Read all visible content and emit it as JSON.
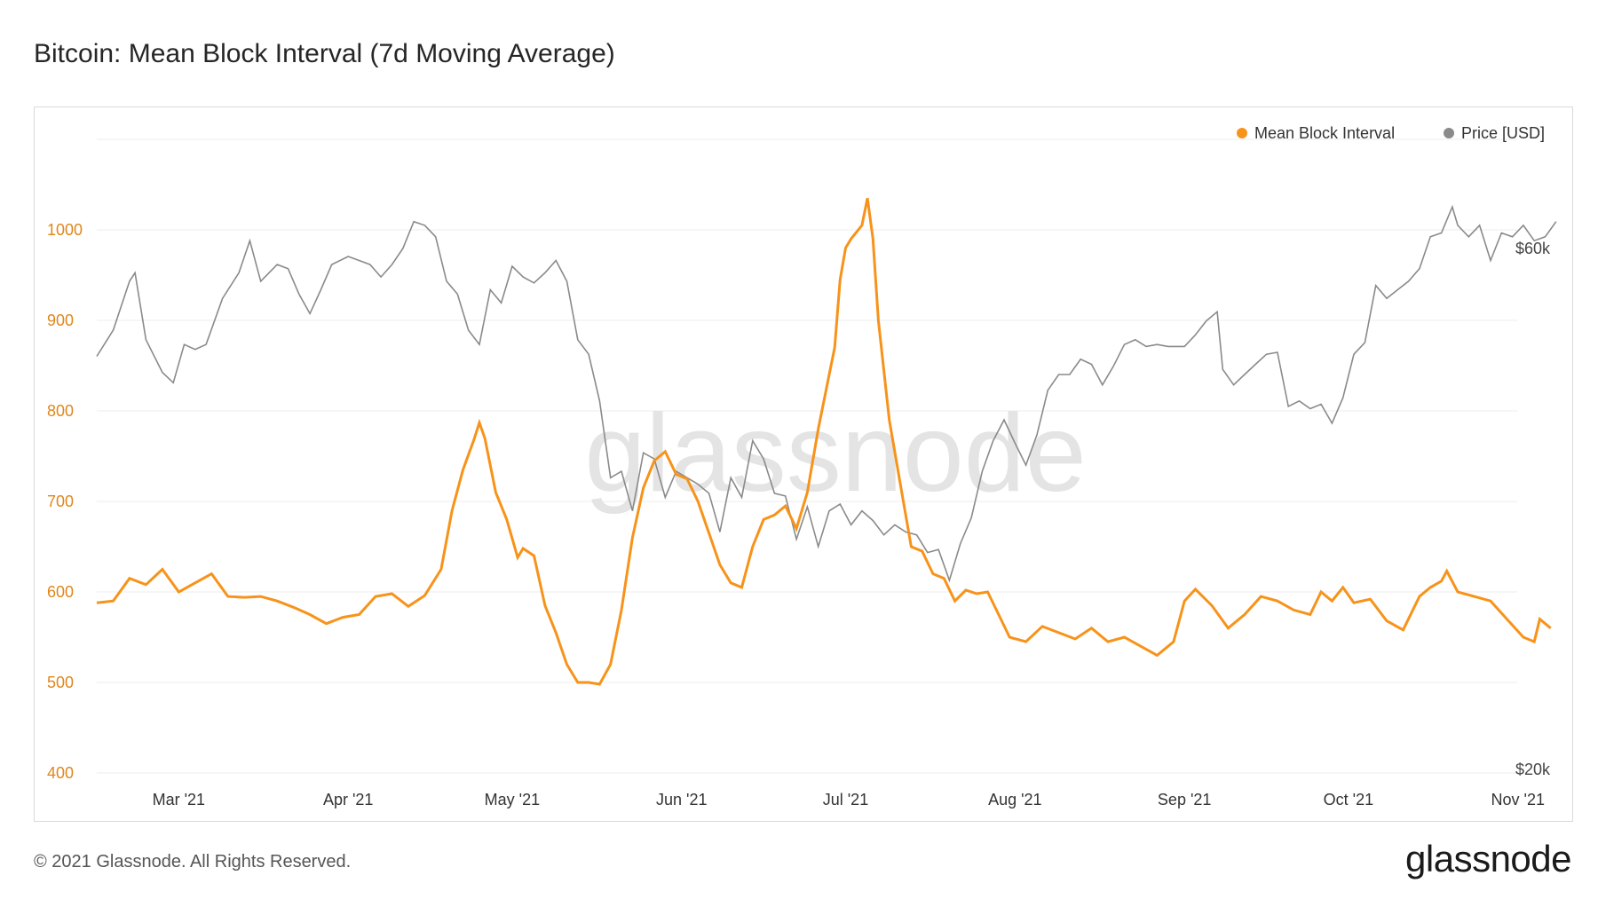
{
  "title": "Bitcoin: Mean Block Interval (7d Moving Average)",
  "footer": {
    "copyright": "© 2021 Glassnode. All Rights Reserved.",
    "logo": "glassnode"
  },
  "watermark": "glassnode",
  "colors": {
    "interval": "#F7931A",
    "price": "#8a8a8a",
    "left_axis_text": "#E0861B",
    "grid": "#ececec"
  },
  "chart_data": {
    "type": "line",
    "title": "Bitcoin: Mean Block Interval (7d Moving Average)",
    "x_ticks": [
      "Mar '21",
      "Apr '21",
      "May '21",
      "Jun '21",
      "Jul '21",
      "Aug '21",
      "Sep '21",
      "Oct '21",
      "Nov '21"
    ],
    "y_left": {
      "ticks": [
        "400",
        "500",
        "600",
        "700",
        "800",
        "900",
        "1000"
      ],
      "lim": [
        400,
        1100
      ]
    },
    "y_right": {
      "ticks": [
        "$20k",
        "$60k"
      ],
      "scale": "log",
      "lim": [
        20000,
        110000
      ]
    },
    "legend_position": "top-right",
    "grid": true,
    "series": [
      {
        "name": "Mean Block Interval",
        "axis": "left",
        "points": [
          [
            "2021-02-14",
            588
          ],
          [
            "2021-02-17",
            590
          ],
          [
            "2021-02-20",
            615
          ],
          [
            "2021-02-23",
            608
          ],
          [
            "2021-02-26",
            625
          ],
          [
            "2021-03-01",
            600
          ],
          [
            "2021-03-04",
            610
          ],
          [
            "2021-03-07",
            620
          ],
          [
            "2021-03-10",
            595
          ],
          [
            "2021-03-13",
            594
          ],
          [
            "2021-03-16",
            595
          ],
          [
            "2021-03-19",
            590
          ],
          [
            "2021-03-22",
            583
          ],
          [
            "2021-03-25",
            575
          ],
          [
            "2021-03-28",
            565
          ],
          [
            "2021-03-31",
            572
          ],
          [
            "2021-04-03",
            575
          ],
          [
            "2021-04-06",
            595
          ],
          [
            "2021-04-09",
            598
          ],
          [
            "2021-04-12",
            584
          ],
          [
            "2021-04-15",
            596
          ],
          [
            "2021-04-18",
            625
          ],
          [
            "2021-04-20",
            690
          ],
          [
            "2021-04-22",
            735
          ],
          [
            "2021-04-24",
            768
          ],
          [
            "2021-04-25",
            787
          ],
          [
            "2021-04-26",
            770
          ],
          [
            "2021-04-28",
            710
          ],
          [
            "2021-04-30",
            680
          ],
          [
            "2021-05-02",
            638
          ],
          [
            "2021-05-03",
            648
          ],
          [
            "2021-05-05",
            640
          ],
          [
            "2021-05-07",
            585
          ],
          [
            "2021-05-09",
            555
          ],
          [
            "2021-05-11",
            520
          ],
          [
            "2021-05-13",
            500
          ],
          [
            "2021-05-15",
            500
          ],
          [
            "2021-05-17",
            498
          ],
          [
            "2021-05-19",
            520
          ],
          [
            "2021-05-21",
            580
          ],
          [
            "2021-05-23",
            660
          ],
          [
            "2021-05-25",
            715
          ],
          [
            "2021-05-27",
            745
          ],
          [
            "2021-05-29",
            755
          ],
          [
            "2021-05-31",
            730
          ],
          [
            "2021-06-02",
            725
          ],
          [
            "2021-06-04",
            700
          ],
          [
            "2021-06-06",
            665
          ],
          [
            "2021-06-08",
            630
          ],
          [
            "2021-06-10",
            610
          ],
          [
            "2021-06-12",
            605
          ],
          [
            "2021-06-14",
            650
          ],
          [
            "2021-06-16",
            680
          ],
          [
            "2021-06-18",
            685
          ],
          [
            "2021-06-20",
            695
          ],
          [
            "2021-06-22",
            670
          ],
          [
            "2021-06-24",
            710
          ],
          [
            "2021-06-26",
            780
          ],
          [
            "2021-06-28",
            840
          ],
          [
            "2021-06-29",
            870
          ],
          [
            "2021-06-30",
            945
          ],
          [
            "2021-07-01",
            980
          ],
          [
            "2021-07-02",
            990
          ],
          [
            "2021-07-04",
            1005
          ],
          [
            "2021-07-05",
            1035
          ],
          [
            "2021-07-06",
            990
          ],
          [
            "2021-07-07",
            900
          ],
          [
            "2021-07-09",
            790
          ],
          [
            "2021-07-11",
            720
          ],
          [
            "2021-07-13",
            650
          ],
          [
            "2021-07-15",
            645
          ],
          [
            "2021-07-17",
            620
          ],
          [
            "2021-07-19",
            615
          ],
          [
            "2021-07-21",
            590
          ],
          [
            "2021-07-23",
            602
          ],
          [
            "2021-07-25",
            598
          ],
          [
            "2021-07-27",
            600
          ],
          [
            "2021-07-29",
            575
          ],
          [
            "2021-07-31",
            550
          ],
          [
            "2021-08-03",
            545
          ],
          [
            "2021-08-06",
            562
          ],
          [
            "2021-08-09",
            555
          ],
          [
            "2021-08-12",
            548
          ],
          [
            "2021-08-15",
            560
          ],
          [
            "2021-08-18",
            545
          ],
          [
            "2021-08-21",
            550
          ],
          [
            "2021-08-24",
            540
          ],
          [
            "2021-08-27",
            530
          ],
          [
            "2021-08-30",
            545
          ],
          [
            "2021-09-01",
            590
          ],
          [
            "2021-09-03",
            603
          ],
          [
            "2021-09-06",
            585
          ],
          [
            "2021-09-09",
            560
          ],
          [
            "2021-09-12",
            575
          ],
          [
            "2021-09-15",
            595
          ],
          [
            "2021-09-18",
            590
          ],
          [
            "2021-09-21",
            580
          ],
          [
            "2021-09-24",
            575
          ],
          [
            "2021-09-26",
            600
          ],
          [
            "2021-09-28",
            590
          ],
          [
            "2021-09-30",
            605
          ],
          [
            "2021-10-02",
            588
          ],
          [
            "2021-10-05",
            592
          ],
          [
            "2021-10-08",
            568
          ],
          [
            "2021-10-11",
            558
          ],
          [
            "2021-10-14",
            595
          ],
          [
            "2021-10-16",
            605
          ],
          [
            "2021-10-18",
            612
          ],
          [
            "2021-10-19",
            623
          ],
          [
            "2021-10-21",
            600
          ],
          [
            "2021-10-24",
            595
          ],
          [
            "2021-10-27",
            590
          ],
          [
            "2021-10-30",
            570
          ],
          [
            "2021-11-02",
            550
          ],
          [
            "2021-11-04",
            545
          ],
          [
            "2021-11-05",
            570
          ],
          [
            "2021-11-07",
            560
          ]
        ]
      },
      {
        "name": "Price [USD]",
        "axis": "right",
        "points": [
          [
            "2021-02-14",
            47800
          ],
          [
            "2021-02-17",
            50500
          ],
          [
            "2021-02-20",
            56000
          ],
          [
            "2021-02-21",
            57000
          ],
          [
            "2021-02-23",
            49500
          ],
          [
            "2021-02-26",
            46200
          ],
          [
            "2021-02-28",
            45200
          ],
          [
            "2021-03-02",
            49000
          ],
          [
            "2021-03-04",
            48500
          ],
          [
            "2021-03-06",
            49000
          ],
          [
            "2021-03-09",
            54000
          ],
          [
            "2021-03-12",
            57000
          ],
          [
            "2021-03-14",
            61000
          ],
          [
            "2021-03-16",
            56000
          ],
          [
            "2021-03-19",
            58000
          ],
          [
            "2021-03-21",
            57500
          ],
          [
            "2021-03-23",
            54500
          ],
          [
            "2021-03-25",
            52300
          ],
          [
            "2021-03-27",
            55000
          ],
          [
            "2021-03-29",
            58000
          ],
          [
            "2021-04-01",
            59000
          ],
          [
            "2021-04-03",
            58500
          ],
          [
            "2021-04-05",
            58000
          ],
          [
            "2021-04-07",
            56500
          ],
          [
            "2021-04-09",
            58000
          ],
          [
            "2021-04-11",
            60000
          ],
          [
            "2021-04-13",
            63500
          ],
          [
            "2021-04-15",
            63000
          ],
          [
            "2021-04-17",
            61500
          ],
          [
            "2021-04-19",
            56000
          ],
          [
            "2021-04-21",
            54500
          ],
          [
            "2021-04-23",
            50500
          ],
          [
            "2021-04-25",
            49000
          ],
          [
            "2021-04-27",
            55000
          ],
          [
            "2021-04-29",
            53500
          ],
          [
            "2021-05-01",
            57800
          ],
          [
            "2021-05-03",
            56500
          ],
          [
            "2021-05-05",
            55800
          ],
          [
            "2021-05-07",
            57000
          ],
          [
            "2021-05-09",
            58500
          ],
          [
            "2021-05-11",
            56000
          ],
          [
            "2021-05-13",
            49500
          ],
          [
            "2021-05-15",
            48000
          ],
          [
            "2021-05-17",
            43500
          ],
          [
            "2021-05-19",
            37000
          ],
          [
            "2021-05-21",
            37500
          ],
          [
            "2021-05-23",
            34500
          ],
          [
            "2021-05-25",
            39000
          ],
          [
            "2021-05-27",
            38500
          ],
          [
            "2021-05-29",
            35500
          ],
          [
            "2021-05-31",
            37500
          ],
          [
            "2021-06-02",
            37000
          ],
          [
            "2021-06-04",
            36500
          ],
          [
            "2021-06-06",
            35800
          ],
          [
            "2021-06-08",
            33000
          ],
          [
            "2021-06-10",
            37000
          ],
          [
            "2021-06-12",
            35500
          ],
          [
            "2021-06-14",
            40000
          ],
          [
            "2021-06-16",
            38500
          ],
          [
            "2021-06-18",
            35800
          ],
          [
            "2021-06-20",
            35600
          ],
          [
            "2021-06-22",
            32500
          ],
          [
            "2021-06-24",
            34800
          ],
          [
            "2021-06-26",
            32000
          ],
          [
            "2021-06-28",
            34500
          ],
          [
            "2021-06-30",
            35000
          ],
          [
            "2021-07-02",
            33500
          ],
          [
            "2021-07-04",
            34500
          ],
          [
            "2021-07-06",
            33800
          ],
          [
            "2021-07-08",
            32800
          ],
          [
            "2021-07-10",
            33500
          ],
          [
            "2021-07-12",
            33000
          ],
          [
            "2021-07-14",
            32800
          ],
          [
            "2021-07-16",
            31600
          ],
          [
            "2021-07-18",
            31800
          ],
          [
            "2021-07-20",
            29800
          ],
          [
            "2021-07-22",
            32200
          ],
          [
            "2021-07-24",
            34000
          ],
          [
            "2021-07-26",
            37500
          ],
          [
            "2021-07-28",
            40000
          ],
          [
            "2021-07-30",
            41800
          ],
          [
            "2021-08-01",
            39800
          ],
          [
            "2021-08-03",
            38000
          ],
          [
            "2021-08-05",
            40500
          ],
          [
            "2021-08-07",
            44500
          ],
          [
            "2021-08-09",
            46000
          ],
          [
            "2021-08-11",
            46000
          ],
          [
            "2021-08-13",
            47500
          ],
          [
            "2021-08-15",
            47000
          ],
          [
            "2021-08-17",
            45000
          ],
          [
            "2021-08-19",
            46800
          ],
          [
            "2021-08-21",
            49000
          ],
          [
            "2021-08-23",
            49500
          ],
          [
            "2021-08-25",
            48800
          ],
          [
            "2021-08-27",
            49000
          ],
          [
            "2021-08-29",
            48800
          ],
          [
            "2021-09-01",
            48800
          ],
          [
            "2021-09-03",
            50000
          ],
          [
            "2021-09-05",
            51500
          ],
          [
            "2021-09-07",
            52500
          ],
          [
            "2021-09-08",
            46500
          ],
          [
            "2021-09-10",
            45000
          ],
          [
            "2021-09-12",
            46000
          ],
          [
            "2021-09-14",
            47000
          ],
          [
            "2021-09-16",
            48000
          ],
          [
            "2021-09-18",
            48200
          ],
          [
            "2021-09-20",
            43000
          ],
          [
            "2021-09-22",
            43500
          ],
          [
            "2021-09-24",
            42800
          ],
          [
            "2021-09-26",
            43200
          ],
          [
            "2021-09-28",
            41500
          ],
          [
            "2021-09-30",
            43800
          ],
          [
            "2021-10-02",
            48000
          ],
          [
            "2021-10-04",
            49200
          ],
          [
            "2021-10-06",
            55500
          ],
          [
            "2021-10-08",
            54000
          ],
          [
            "2021-10-10",
            55000
          ],
          [
            "2021-10-12",
            56000
          ],
          [
            "2021-10-14",
            57500
          ],
          [
            "2021-10-16",
            61500
          ],
          [
            "2021-10-18",
            62000
          ],
          [
            "2021-10-20",
            65500
          ],
          [
            "2021-10-21",
            63000
          ],
          [
            "2021-10-23",
            61500
          ],
          [
            "2021-10-25",
            63000
          ],
          [
            "2021-10-27",
            58500
          ],
          [
            "2021-10-29",
            62000
          ],
          [
            "2021-10-31",
            61500
          ],
          [
            "2021-11-02",
            63000
          ],
          [
            "2021-11-04",
            61000
          ],
          [
            "2021-11-06",
            61500
          ],
          [
            "2021-11-08",
            63500
          ]
        ]
      }
    ]
  }
}
